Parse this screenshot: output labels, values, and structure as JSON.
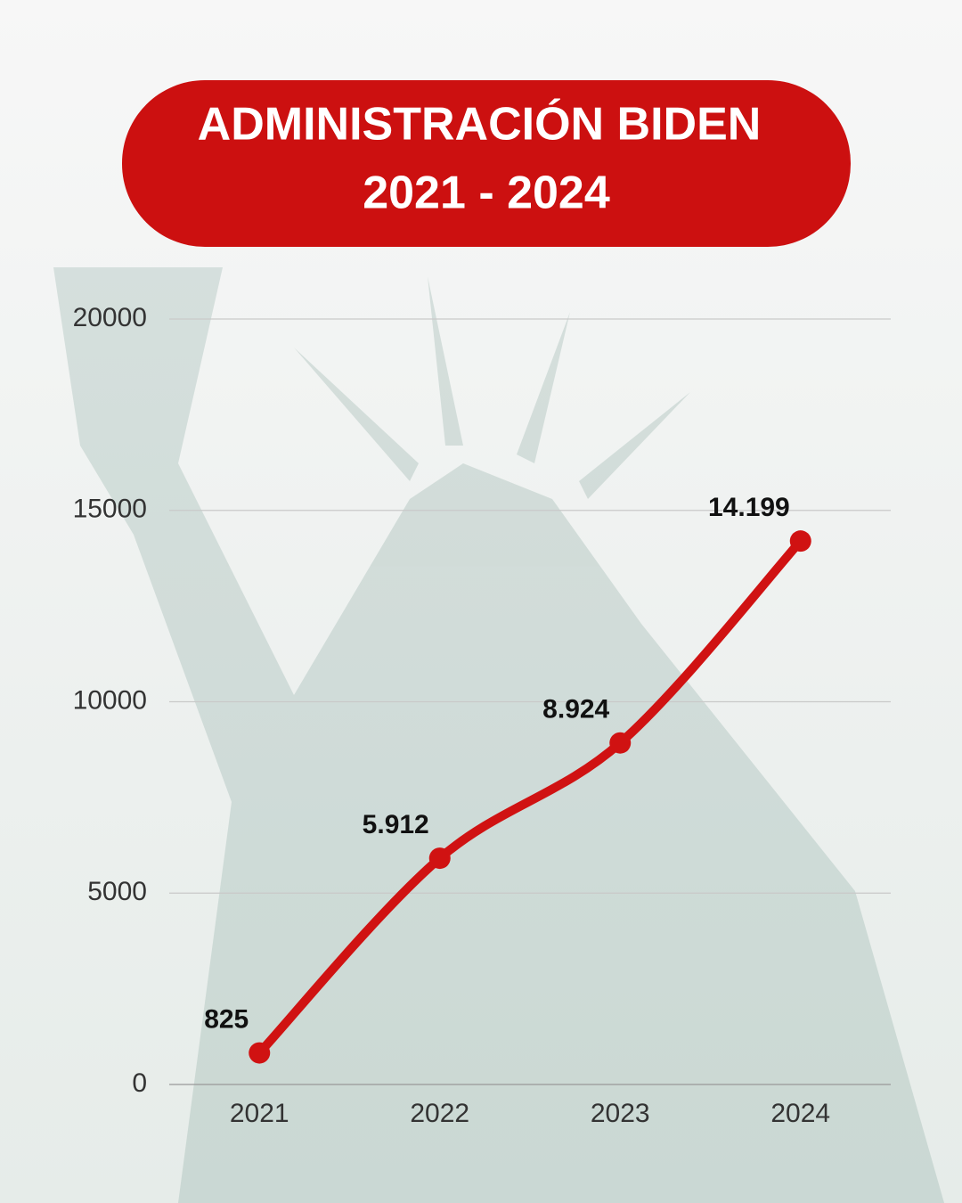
{
  "chart_data": {
    "type": "line",
    "title": "ADMINISTRACIÓN BIDEN",
    "subtitle": "2021 - 2024",
    "categories": [
      "2021",
      "2022",
      "2023",
      "2024"
    ],
    "series": [
      {
        "color": "#d01212",
        "values": [
          825,
          5912,
          8924,
          14199
        ],
        "value_labels": [
          "825",
          "5.912",
          "8.924",
          "14.199"
        ]
      }
    ],
    "ylim": [
      0,
      20000
    ],
    "yticks": [
      0,
      5000,
      10000,
      15000,
      20000
    ],
    "grid": true
  }
}
